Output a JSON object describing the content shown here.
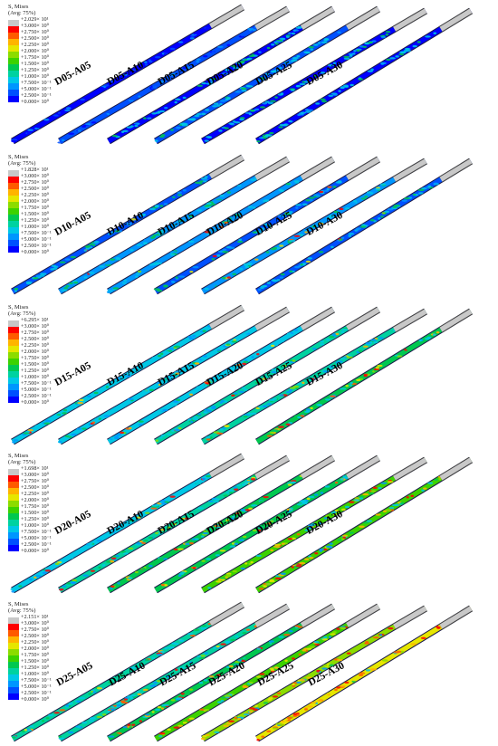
{
  "colors": [
    "#c8c8c8",
    "#ff0000",
    "#ff5a00",
    "#ffb400",
    "#e6e600",
    "#8cdc00",
    "#3cd200",
    "#00c850",
    "#00d2a0",
    "#00c8e6",
    "#0096ff",
    "#0050ff",
    "#0000ff"
  ],
  "panels": [
    {
      "id": "d05",
      "legend": {
        "title": "S, Mises",
        "subtitle": "(Avg: 75%)",
        "values": [
          "+2.029× 10¹",
          "+3.000× 10⁰",
          "+2.750× 10⁰",
          "+2.500× 10⁰",
          "+2.250× 10⁰",
          "+2.000× 10⁰",
          "+1.750× 10⁰",
          "+1.500× 10⁰",
          "+1.250× 10⁰",
          "+1.000× 10⁰",
          "+7.500× 10⁻¹",
          "+5.000× 10⁻¹",
          "+2.500× 10⁻¹",
          "+0.000× 10⁰"
        ]
      },
      "labels": [
        "D05-A05",
        "D05-A10",
        "D05-A15",
        "D05-A20",
        "D05-A25",
        "D05-A30"
      ]
    },
    {
      "id": "d10",
      "legend": {
        "title": "S, Mises",
        "subtitle": "(Avg: 75%)",
        "values": [
          "+1.828× 10¹",
          "+3.000× 10⁰",
          "+2.750× 10⁰",
          "+2.500× 10⁰",
          "+2.250× 10⁰",
          "+2.000× 10⁰",
          "+1.750× 10⁰",
          "+1.500× 10⁰",
          "+1.250× 10⁰",
          "+1.000× 10⁰",
          "+7.500× 10⁻¹",
          "+5.000× 10⁻¹",
          "+2.500× 10⁻¹",
          "+0.000× 10⁰"
        ]
      },
      "labels": [
        "D10-A05",
        "D10-A10",
        "D10-A15",
        "D10-A20",
        "D10-A25",
        "D10-A30"
      ]
    },
    {
      "id": "d15",
      "legend": {
        "title": "S, Mises",
        "subtitle": "(Avg: 75%)",
        "values": [
          "+6.295× 10¹",
          "+3.000× 10⁰",
          "+2.750× 10⁰",
          "+2.500× 10⁰",
          "+2.250× 10⁰",
          "+2.000× 10⁰",
          "+1.750× 10⁰",
          "+1.500× 10⁰",
          "+1.250× 10⁰",
          "+1.000× 10⁰",
          "+7.500× 10⁻¹",
          "+5.000× 10⁻¹",
          "+2.500× 10⁻¹",
          "+0.000× 10⁰"
        ]
      },
      "labels": [
        "D15-A05",
        "D15-A10",
        "D15-A15",
        "D15-A20",
        "D15-A25",
        "D15-A30"
      ]
    },
    {
      "id": "d20",
      "legend": {
        "title": "S, Mises",
        "subtitle": "(Avg: 75%)",
        "values": [
          "+1.698× 10¹",
          "+3.000× 10⁰",
          "+2.750× 10⁰",
          "+2.500× 10⁰",
          "+2.250× 10⁰",
          "+2.000× 10⁰",
          "+1.750× 10⁰",
          "+1.500× 10⁰",
          "+1.250× 10⁰",
          "+1.000× 10⁰",
          "+7.500× 10⁻¹",
          "+5.000× 10⁻¹",
          "+2.500× 10⁻¹",
          "+0.000× 10⁰"
        ]
      },
      "labels": [
        "D20-A05",
        "D20-A10",
        "D20-A15",
        "D20-A20",
        "D20-A25",
        "D20-A30"
      ]
    },
    {
      "id": "d25",
      "legend": {
        "title": "S, Mises",
        "subtitle": "(Avg: 75%)",
        "values": [
          "+2.151× 10¹",
          "+3.000× 10⁰",
          "+2.750× 10⁰",
          "+2.500× 10⁰",
          "+2.250× 10⁰",
          "+2.000× 10⁰",
          "+1.750× 10⁰",
          "+1.500× 10⁰",
          "+1.250× 10⁰",
          "+1.000× 10⁰",
          "+7.500× 10⁻¹",
          "+5.000× 10⁻¹",
          "+2.500× 10⁻¹",
          "+0.000× 10⁰"
        ]
      },
      "labels": [
        "D25-A05",
        "D25-A10",
        "D25-A15",
        "D25-A20",
        "D25-A25",
        "D25-A30"
      ]
    }
  ]
}
